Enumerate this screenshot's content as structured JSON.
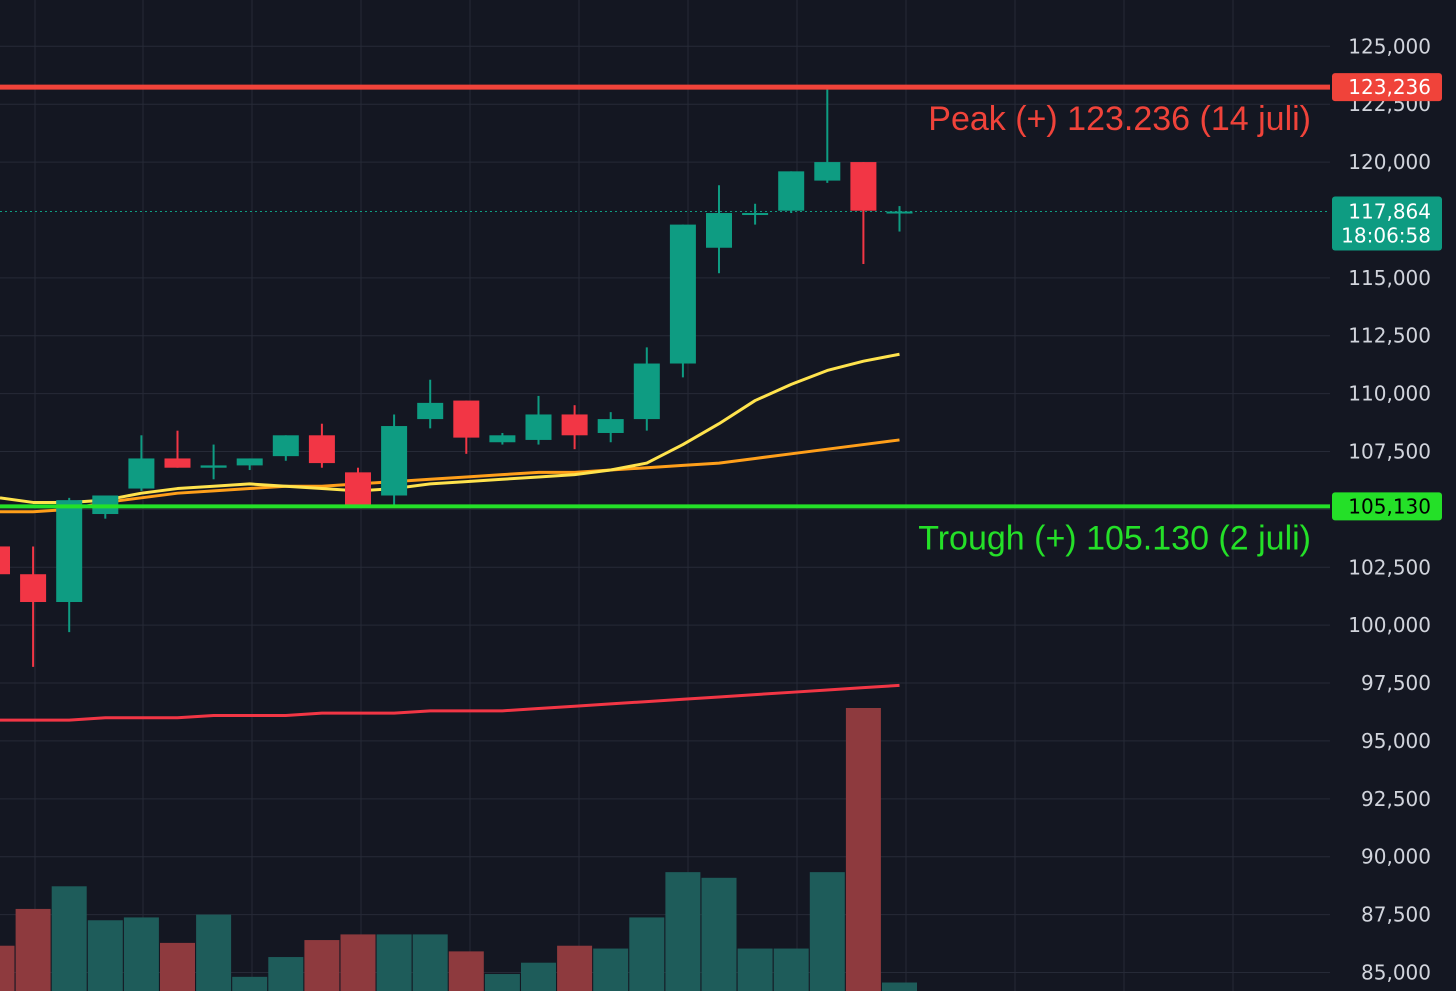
{
  "chart_data": {
    "type": "candlestick",
    "y_ticks": [
      85000,
      87500,
      90000,
      92500,
      95000,
      97500,
      100000,
      102500,
      105000,
      107500,
      110000,
      112500,
      115000,
      120000,
      122500,
      125000
    ],
    "y_tick_labels": [
      "85,000",
      "87,500",
      "90,000",
      "92,500",
      "95,000",
      "97,500",
      "100,000",
      "102,500",
      "105,000",
      "107,500",
      "110,000",
      "112,500",
      "115,000",
      "120,000",
      "122,500",
      "125,000"
    ],
    "ylim": [
      84200,
      127000
    ],
    "grid": true,
    "candles": [
      {
        "o": 103400,
        "h": 103500,
        "l": 102300,
        "c": 102200
      },
      {
        "o": 102200,
        "h": 103400,
        "l": 98200,
        "c": 101000
      },
      {
        "o": 101000,
        "h": 105500,
        "l": 99700,
        "c": 105400
      },
      {
        "o": 104800,
        "h": 105500,
        "l": 104600,
        "c": 105600
      },
      {
        "o": 105900,
        "h": 108200,
        "l": 105800,
        "c": 107200
      },
      {
        "o": 107200,
        "h": 108400,
        "l": 106800,
        "c": 106800
      },
      {
        "o": 106800,
        "h": 107800,
        "l": 106300,
        "c": 106900
      },
      {
        "o": 106900,
        "h": 107100,
        "l": 106700,
        "c": 107200
      },
      {
        "o": 107300,
        "h": 108200,
        "l": 107100,
        "c": 108200
      },
      {
        "o": 108200,
        "h": 108700,
        "l": 106800,
        "c": 107000
      },
      {
        "o": 106600,
        "h": 106800,
        "l": 105200,
        "c": 105200
      },
      {
        "o": 105600,
        "h": 109100,
        "l": 105100,
        "c": 108600
      },
      {
        "o": 108900,
        "h": 110600,
        "l": 108500,
        "c": 109600
      },
      {
        "o": 109700,
        "h": 109700,
        "l": 107400,
        "c": 108100
      },
      {
        "o": 107900,
        "h": 108300,
        "l": 107800,
        "c": 108200
      },
      {
        "o": 108000,
        "h": 109900,
        "l": 107800,
        "c": 109100
      },
      {
        "o": 109100,
        "h": 109500,
        "l": 107600,
        "c": 108200
      },
      {
        "o": 108300,
        "h": 109200,
        "l": 107900,
        "c": 108900
      },
      {
        "o": 108900,
        "h": 112000,
        "l": 108400,
        "c": 111300
      },
      {
        "o": 111300,
        "h": 116900,
        "l": 110700,
        "c": 117300
      },
      {
        "o": 116300,
        "h": 119000,
        "l": 115200,
        "c": 117800
      },
      {
        "o": 117800,
        "h": 118200,
        "l": 117300,
        "c": 117800
      },
      {
        "o": 117900,
        "h": 119600,
        "l": 117800,
        "c": 119600
      },
      {
        "o": 119200,
        "h": 123236,
        "l": 119100,
        "c": 120000
      },
      {
        "o": 120000,
        "h": 119900,
        "l": 115600,
        "c": 117900
      },
      {
        "o": 117864,
        "h": 118100,
        "l": 117000,
        "c": 117864
      }
    ],
    "volume_relative": [
      0.16,
      0.29,
      0.37,
      0.25,
      0.26,
      0.17,
      0.27,
      0.05,
      0.12,
      0.18,
      0.2,
      0.2,
      0.2,
      0.14,
      0.06,
      0.1,
      0.16,
      0.15,
      0.26,
      0.42,
      0.4,
      0.15,
      0.15,
      0.42,
      1.0,
      0.03
    ],
    "ma_fast": [
      105500,
      105300,
      105300,
      105400,
      105700,
      105900,
      106000,
      106100,
      106000,
      105900,
      105800,
      105900,
      106100,
      106200,
      106300,
      106400,
      106500,
      106700,
      107000,
      107800,
      108700,
      109700,
      110400,
      111000,
      111400,
      111700
    ],
    "ma_mid": [
      104900,
      104900,
      105000,
      105300,
      105500,
      105700,
      105800,
      105900,
      106000,
      106000,
      106100,
      106200,
      106300,
      106400,
      106500,
      106600,
      106600,
      106700,
      106800,
      106900,
      107000,
      107200,
      107400,
      107600,
      107800,
      108000
    ],
    "ma_slow": [
      95900,
      95900,
      95900,
      96000,
      96000,
      96000,
      96100,
      96100,
      96100,
      96200,
      96200,
      96200,
      96300,
      96300,
      96300,
      96400,
      96500,
      96600,
      96700,
      96800,
      96900,
      97000,
      97100,
      97200,
      97300,
      97400
    ],
    "peak_value": 123236,
    "trough_value": 105130,
    "last_price": 117864,
    "colors": {
      "background": "#141722",
      "grid": "#262a37",
      "up": "#0e9c82",
      "down": "#f23645",
      "up_volume": "#1e5c5a",
      "down_volume": "#8e3a3e",
      "ma_fast": "#ffe34d",
      "ma_mid": "#ff9f1a",
      "ma_slow": "#f23645",
      "peak_line": "#f0433a",
      "trough_line": "#24e028",
      "axis_text": "#d1d4dc"
    }
  },
  "labels": {
    "peak_tag": "123,236",
    "trough_tag": "105,130",
    "last_price_tag": "117,864",
    "countdown_tag": "18:06:58",
    "peak_annotation": "Peak (+) 123.236 (14 juli)",
    "trough_annotation": "Trough (+) 105.130 (2 juli)"
  }
}
